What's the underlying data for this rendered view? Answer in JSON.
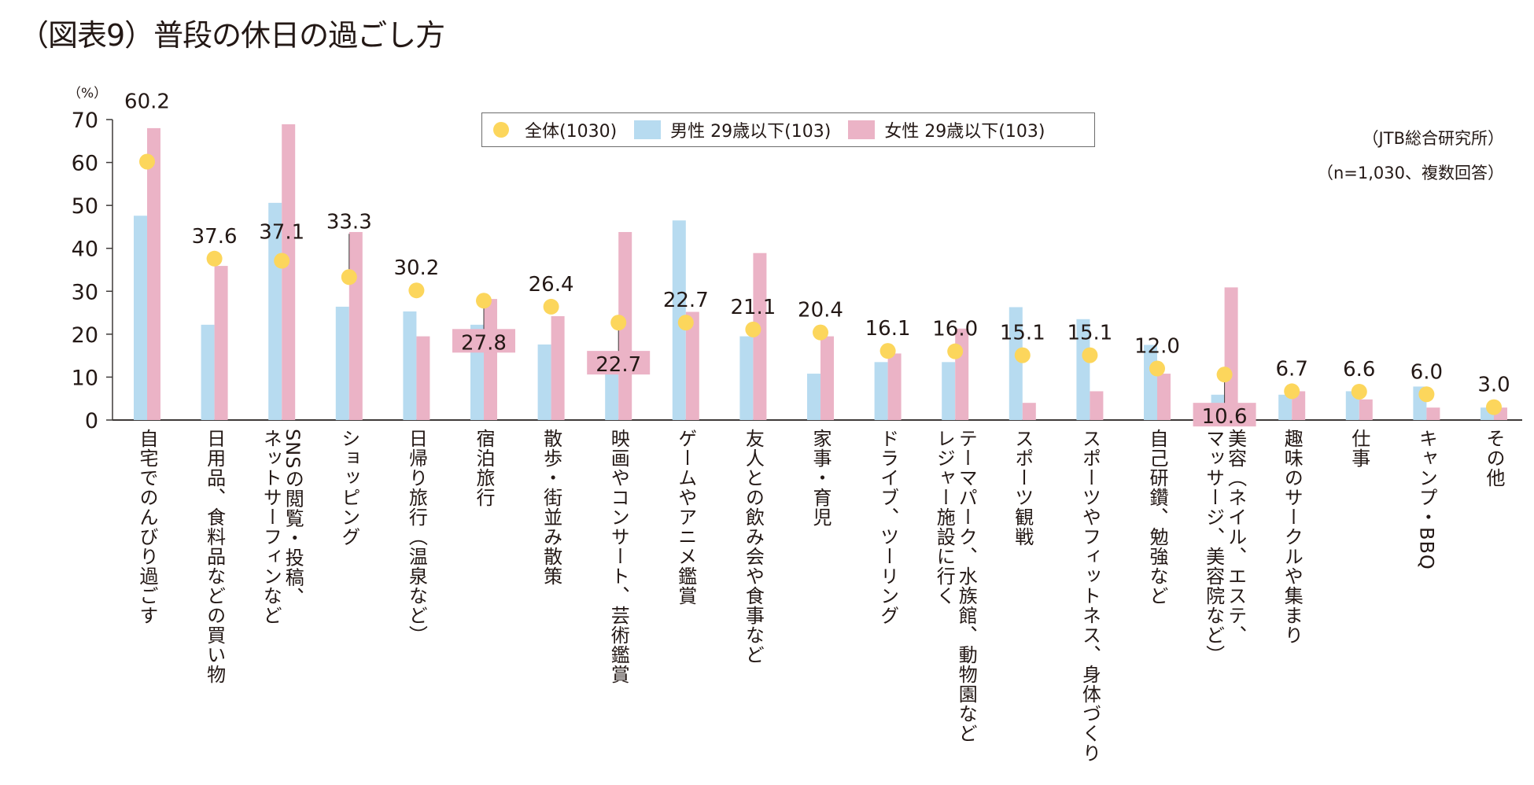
{
  "chart_data": {
    "type": "bar",
    "title": "（図表9）普段の休日の過ごし方",
    "source": "（JTB総合研究所）",
    "note": "（n=1,030、複数回答）",
    "ylabel": "（%）",
    "xlabel": "",
    "ylim": [
      0,
      70
    ],
    "yticks": [
      0,
      10,
      20,
      30,
      40,
      50,
      60,
      70
    ],
    "grid": false,
    "legend_placement": "top-center",
    "categories": [
      "自宅でのんびり過ごす",
      "日用品、食料品などの買い物",
      "SNSの閲覧・投稿、\nネットサーフィンなど",
      "ショッピング",
      "日帰り旅行（温泉など）",
      "宿泊旅行",
      "散歩・街並み散策",
      "映画やコンサート、芸術鑑賞",
      "ゲームやアニメ鑑賞",
      "友人との飲み会や食事など",
      "家事・育児",
      "ドライブ、ツーリング",
      "テーマパーク、水族館、動物園など\nレジャー施設に行く",
      "スポーツ観戦",
      "スポーツやフィットネス、身体づくり",
      "自己研鑽、勉強など",
      "美容（ネイル、エステ、\nマッサージ、美容院など）",
      "趣味のサークルや集まり",
      "仕事",
      "キャンプ・BBQ",
      "その他"
    ],
    "series": [
      {
        "name": "全体(1030)",
        "kind": "point",
        "color": "#fcd65c",
        "values": [
          60.2,
          37.6,
          37.1,
          33.3,
          30.2,
          27.8,
          26.4,
          22.7,
          22.7,
          21.1,
          20.4,
          16.1,
          16.0,
          15.1,
          15.1,
          12.0,
          10.6,
          6.7,
          6.6,
          6.0,
          3.0
        ]
      },
      {
        "name": "男性 29歳以下(103)",
        "kind": "bar",
        "color": "#b7dbf0",
        "values": [
          47.6,
          22.2,
          50.6,
          26.4,
          25.3,
          22.2,
          17.6,
          15.5,
          46.5,
          19.5,
          10.8,
          13.5,
          13.5,
          26.3,
          23.5,
          17.5,
          5.9,
          5.9,
          6.7,
          7.8,
          2.9
        ]
      },
      {
        "name": "女性 29歳以下(103)",
        "kind": "bar",
        "color": "#ebb3c6",
        "values": [
          68.0,
          35.9,
          68.9,
          43.8,
          19.5,
          28.2,
          24.2,
          43.8,
          25.2,
          38.9,
          19.5,
          15.5,
          21.3,
          4.0,
          6.7,
          10.8,
          30.9,
          6.7,
          4.8,
          2.9,
          2.9
        ]
      }
    ],
    "data_labels": [
      "60.2",
      "37.6",
      "37.1",
      "33.3",
      "30.2",
      "27.8",
      "26.4",
      "22.7",
      "22.7",
      "21.1",
      "20.4",
      "16.1",
      "16.0",
      "15.1",
      "15.1",
      "12.0",
      "10.6",
      "6.7",
      "6.6",
      "6.0",
      "3.0"
    ],
    "highlighted_labels": [
      5,
      7,
      16
    ]
  }
}
